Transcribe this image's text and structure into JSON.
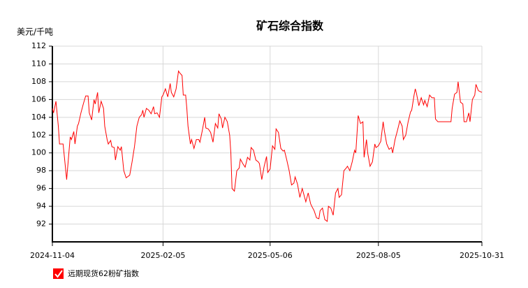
{
  "chart_data": {
    "type": "line",
    "title": "矿石综合指数",
    "y_label": "美元/千吨",
    "x": [
      "2024-11-04",
      "2024-11-05",
      "2024-11-07",
      "2024-11-09",
      "2024-11-10",
      "2024-11-13",
      "2024-11-16",
      "2024-11-19",
      "2024-11-20",
      "2024-11-22",
      "2024-11-23",
      "2024-11-25",
      "2024-11-26",
      "2024-11-28",
      "2024-11-30",
      "2024-12-02",
      "2024-12-04",
      "2024-12-05",
      "2024-12-07",
      "2024-12-09",
      "2024-12-10",
      "2024-12-12",
      "2024-12-13",
      "2024-12-15",
      "2024-12-17",
      "2024-12-18",
      "2024-12-20",
      "2024-12-21",
      "2024-12-23",
      "2024-12-24",
      "2024-12-26",
      "2024-12-27",
      "2024-12-29",
      "2024-12-31",
      "2025-01-01",
      "2025-01-03",
      "2025-01-05",
      "2025-01-06",
      "2025-01-08",
      "2025-01-10",
      "2025-01-12",
      "2025-01-14",
      "2025-01-16",
      "2025-01-18",
      "2025-01-19",
      "2025-01-20",
      "2025-01-22",
      "2025-01-24",
      "2025-01-26",
      "2025-01-28",
      "2025-01-29",
      "2025-01-31",
      "2025-02-02",
      "2025-02-04",
      "2025-02-05",
      "2025-02-07",
      "2025-02-09",
      "2025-02-11",
      "2025-02-12",
      "2025-02-14",
      "2025-02-16",
      "2025-02-18",
      "2025-02-19",
      "2025-02-21",
      "2025-02-22",
      "2025-02-24",
      "2025-02-25",
      "2025-02-26",
      "2025-02-28",
      "2025-03-01",
      "2025-03-03",
      "2025-03-05",
      "2025-03-07",
      "2025-03-08",
      "2025-03-10",
      "2025-03-12",
      "2025-03-13",
      "2025-03-15",
      "2025-03-17",
      "2025-03-19",
      "2025-03-21",
      "2025-03-23",
      "2025-03-24",
      "2025-03-26",
      "2025-03-27",
      "2025-03-29",
      "2025-03-31",
      "2025-04-02",
      "2025-04-03",
      "2025-04-04",
      "2025-04-06",
      "2025-04-08",
      "2025-04-10",
      "2025-04-11",
      "2025-04-13",
      "2025-04-15",
      "2025-04-17",
      "2025-04-19",
      "2025-04-20",
      "2025-04-22",
      "2025-04-24",
      "2025-04-26",
      "2025-04-27",
      "2025-04-29",
      "2025-05-01",
      "2025-05-03",
      "2025-05-04",
      "2025-05-06",
      "2025-05-08",
      "2025-05-10",
      "2025-05-11",
      "2025-05-13",
      "2025-05-15",
      "2025-05-17",
      "2025-05-18",
      "2025-05-20",
      "2025-05-22",
      "2025-05-24",
      "2025-05-26",
      "2025-05-27",
      "2025-05-29",
      "2025-05-31",
      "2025-06-02",
      "2025-06-03",
      "2025-06-05",
      "2025-06-07",
      "2025-06-09",
      "2025-06-10",
      "2025-06-12",
      "2025-06-14",
      "2025-06-16",
      "2025-06-17",
      "2025-06-19",
      "2025-06-21",
      "2025-06-23",
      "2025-06-24",
      "2025-06-26",
      "2025-06-28",
      "2025-06-30",
      "2025-07-02",
      "2025-07-03",
      "2025-07-05",
      "2025-07-07",
      "2025-07-09",
      "2025-07-10",
      "2025-07-12",
      "2025-07-14",
      "2025-07-16",
      "2025-07-17",
      "2025-07-19",
      "2025-07-21",
      "2025-07-23",
      "2025-07-24",
      "2025-07-26",
      "2025-07-27",
      "2025-07-29",
      "2025-07-31",
      "2025-08-02",
      "2025-08-03",
      "2025-08-05",
      "2025-08-07",
      "2025-08-09",
      "2025-08-10",
      "2025-08-12",
      "2025-08-14",
      "2025-08-16",
      "2025-08-17",
      "2025-08-19",
      "2025-08-21",
      "2025-08-23",
      "2025-08-25",
      "2025-08-26",
      "2025-08-28",
      "2025-08-30",
      "2025-09-01",
      "2025-09-02",
      "2025-09-04",
      "2025-09-05",
      "2025-09-06",
      "2025-09-08",
      "2025-09-10",
      "2025-09-12",
      "2025-09-13",
      "2025-09-15",
      "2025-09-17",
      "2025-09-19",
      "2025-09-21",
      "2025-09-22",
      "2025-09-24",
      "2025-09-26",
      "2025-09-29",
      "2025-10-03",
      "2025-10-05",
      "2025-10-06",
      "2025-10-08",
      "2025-10-10",
      "2025-10-11",
      "2025-10-13",
      "2025-10-15",
      "2025-10-16",
      "2025-10-18",
      "2025-10-20",
      "2025-10-21",
      "2025-10-23",
      "2025-10-25",
      "2025-10-26",
      "2025-10-28",
      "2025-10-31"
    ],
    "series": [
      {
        "name": "远期现货62粉矿指数",
        "color": "#ff0000",
        "values": [
          105,
          104.5,
          105.8,
          103,
          101,
          101,
          97,
          101.8,
          101.5,
          102.4,
          101,
          103,
          103.3,
          104.5,
          105.5,
          106.4,
          106.4,
          104.5,
          103.7,
          106,
          105.5,
          106.8,
          104.5,
          105.8,
          105,
          103,
          101.5,
          101,
          101.4,
          100.7,
          100.6,
          99.2,
          100.7,
          100.3,
          100.7,
          98,
          97.2,
          97.3,
          97.5,
          99,
          100.7,
          103,
          104,
          104.3,
          104.8,
          104,
          105,
          104.8,
          104.4,
          105.2,
          104.4,
          104.5,
          104,
          106.3,
          106.5,
          107.2,
          106.3,
          107.8,
          106.8,
          106.3,
          107.2,
          109.2,
          109,
          108.7,
          106.5,
          106.5,
          105,
          103,
          101,
          101.5,
          100.5,
          101.5,
          101.5,
          101.2,
          102.5,
          104,
          102.8,
          102.7,
          102.3,
          101.2,
          103.3,
          102.8,
          104.4,
          103.8,
          102.8,
          104,
          103.5,
          102,
          100,
          96,
          95.7,
          98,
          98.3,
          99.3,
          98.8,
          98.4,
          99.5,
          99.2,
          100.6,
          100.3,
          99.2,
          99,
          98.8,
          97,
          98.5,
          99.6,
          97.8,
          98.2,
          100.8,
          100.4,
          102.7,
          102.3,
          100.5,
          100.2,
          100.3,
          99.2,
          98,
          96.4,
          96.6,
          97.3,
          96.5,
          95,
          96,
          95.5,
          94.5,
          95.5,
          94.3,
          94,
          93.5,
          92.7,
          92.6,
          93.5,
          93.8,
          92.5,
          92.3,
          94,
          93.8,
          93,
          95.5,
          96,
          95,
          95.3,
          98,
          98.3,
          98.5,
          98,
          99,
          100.3,
          100,
          104.2,
          103.3,
          103.5,
          99.5,
          101.5,
          100,
          98.5,
          99,
          101,
          100.6,
          100.8,
          101.3,
          103.5,
          102.5,
          101,
          100.4,
          100.6,
          100,
          101.5,
          102.5,
          103.6,
          103,
          101.5,
          102,
          103.5,
          104.6,
          104.8,
          106.5,
          107.2,
          106.7,
          105.3,
          106.2,
          105.4,
          105.9,
          105.2,
          106.5,
          106.2,
          106.2,
          103.8,
          103.5,
          103.5,
          103.5,
          103.5,
          103.5,
          105,
          106.6,
          106.8,
          108,
          105.7,
          105.5,
          103.5,
          103.5,
          104.5,
          103.5,
          106,
          106.5,
          107.7,
          107,
          106.8
        ]
      }
    ],
    "xlim": [
      "2024-11-04",
      "2025-10-31"
    ],
    "xticks": [
      "2024-11-04",
      "2025-02-05",
      "2025-05-06",
      "2025-08-05",
      "2025-10-31"
    ],
    "ylim": [
      90,
      112
    ],
    "yticks": [
      92,
      94,
      96,
      98,
      100,
      102,
      104,
      106,
      108,
      110,
      112
    ],
    "grid": true,
    "legend": "bottom-left"
  }
}
